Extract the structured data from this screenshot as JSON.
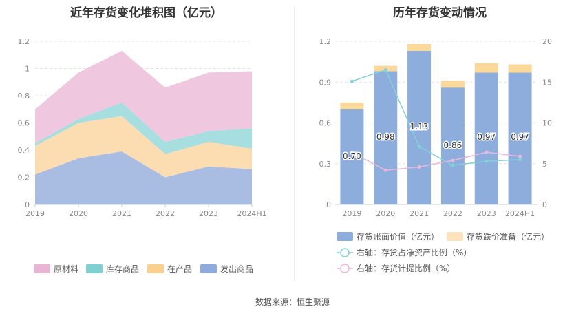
{
  "left_title": "近年存货变化堆积图（亿元）",
  "right_title": "历年存货变动情况",
  "source": "数据来源：恒生聚源",
  "colors": {
    "raw": "#EFC8E0",
    "stock": "#A7DEDF",
    "wip": "#FBDDB1",
    "shipped": "#A9BDE3",
    "raw_legend": "#E9B5D5",
    "stock_legend": "#7ED0D2",
    "wip_legend": "#FAD08E",
    "shipped_legend": "#8FAADC",
    "bar": "#8DAEDD",
    "reserve": "#FBD99B",
    "line_asset": "#7FD3D8",
    "line_provision": "#EBB7DA"
  },
  "chart_data": [
    {
      "type": "area",
      "stacked": true,
      "title": "近年存货变化堆积图（亿元）",
      "x": [
        "2019",
        "2020",
        "2021",
        "2022",
        "2023",
        "2024H1"
      ],
      "y_ticks": [
        "0",
        "0.2",
        "0.4",
        "0.6",
        "0.8",
        "1",
        "1.2"
      ],
      "ylim": [
        0,
        1.2
      ],
      "grid": true,
      "legend_position": "bottom",
      "series": [
        {
          "name": "发出商品",
          "values": [
            0.22,
            0.34,
            0.39,
            0.2,
            0.28,
            0.26
          ]
        },
        {
          "name": "在产品",
          "values": [
            0.21,
            0.26,
            0.26,
            0.17,
            0.18,
            0.15
          ]
        },
        {
          "name": "库存商品",
          "values": [
            0.02,
            0.03,
            0.1,
            0.09,
            0.08,
            0.15
          ]
        },
        {
          "name": "原材料",
          "values": [
            0.25,
            0.34,
            0.38,
            0.4,
            0.43,
            0.42
          ]
        }
      ],
      "legend_order": [
        "原材料",
        "库存商品",
        "在产品",
        "发出商品"
      ]
    },
    {
      "type": "bar",
      "title": "历年存货变动情况",
      "x": [
        "2019",
        "2020",
        "2021",
        "2022",
        "2023",
        "2024H1"
      ],
      "y_left_ticks": [
        "0",
        "0.3",
        "0.6",
        "0.9",
        "1.2"
      ],
      "y_right_ticks": [
        "0",
        "5",
        "10",
        "15",
        "20"
      ],
      "ylim_left": [
        0,
        1.2
      ],
      "ylim_right": [
        0,
        20
      ],
      "grid": true,
      "legend_position": "bottom",
      "bar_series": [
        {
          "name": "存货账面价值（亿元）",
          "values": [
            0.7,
            0.98,
            1.13,
            0.86,
            0.97,
            0.97
          ],
          "labels": [
            "0.70",
            "0.98",
            "1.13",
            "0.86",
            "0.97",
            "0.97"
          ]
        },
        {
          "name": "存货跌价准备（亿元）",
          "values": [
            0.05,
            0.04,
            0.05,
            0.05,
            0.07,
            0.06
          ]
        }
      ],
      "line_series": [
        {
          "name": "右轴：存货占净资产比例（%）",
          "values": [
            15.1,
            16.5,
            7.1,
            4.8,
            5.3,
            5.5
          ]
        },
        {
          "name": "右轴：存货计提比例（%）",
          "values": [
            6.4,
            4.2,
            4.6,
            5.4,
            6.4,
            5.9
          ]
        }
      ]
    }
  ]
}
